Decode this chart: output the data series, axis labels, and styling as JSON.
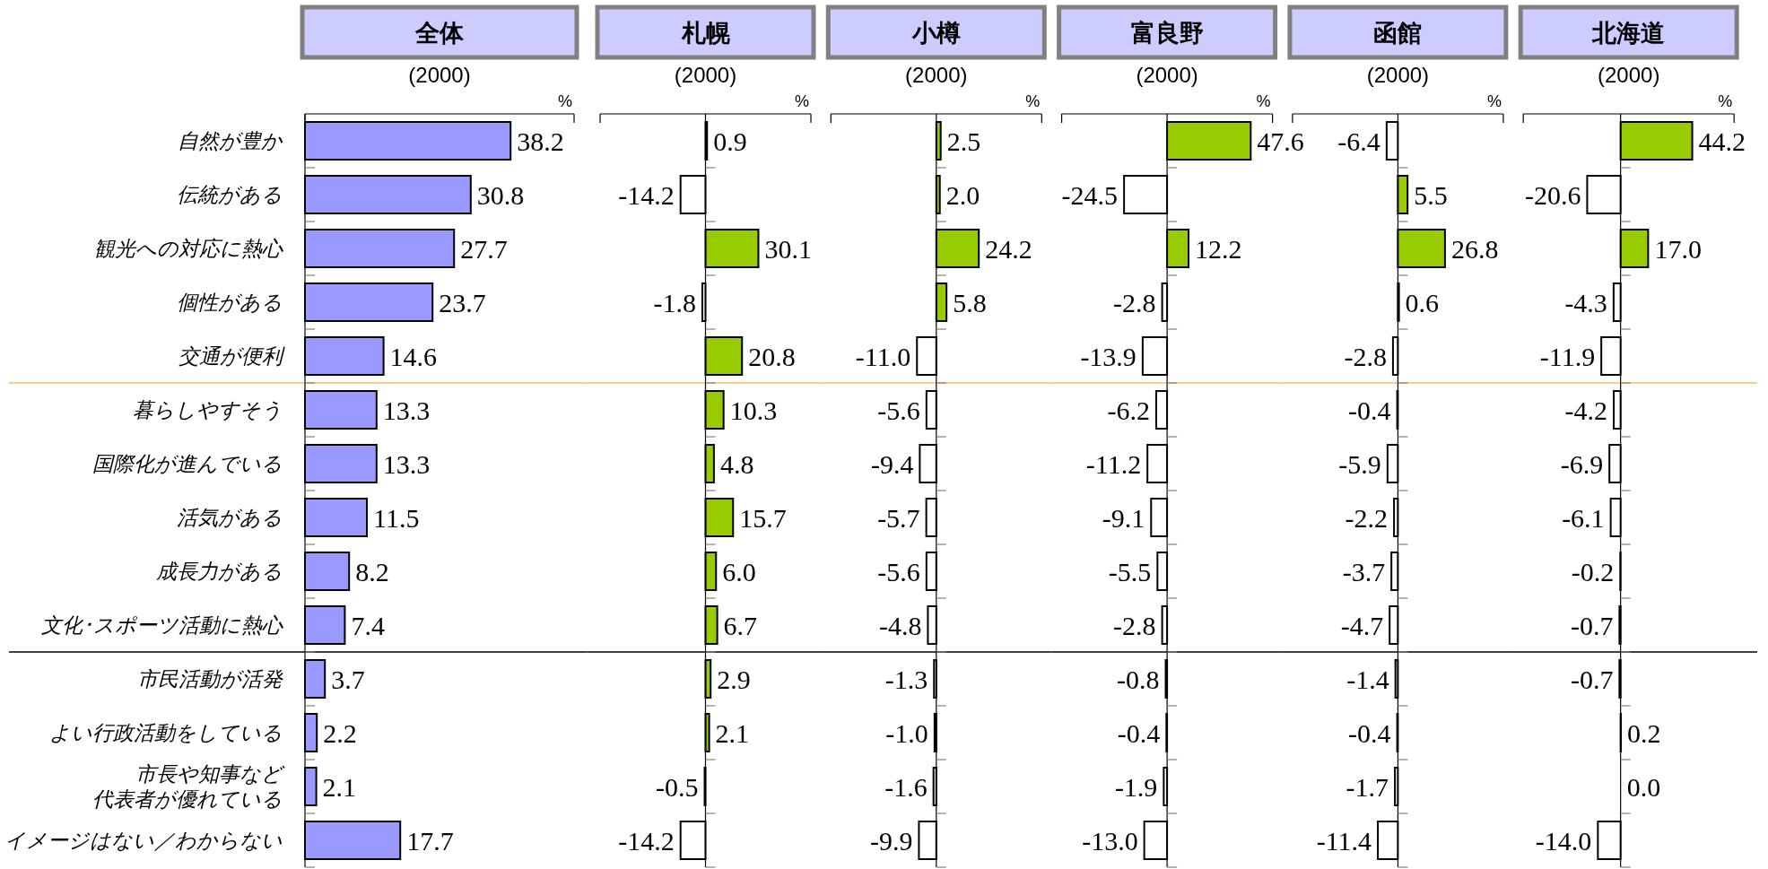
{
  "chart_data": [
    {
      "type": "bar",
      "orientation": "horizontal",
      "title": "全体",
      "subtitle": "(2000)",
      "xlabel": "%",
      "categories": [
        "自然が豊か",
        "伝統がある",
        "観光への対応に熱心",
        "個性がある",
        "交通が便利",
        "暮らしやすそう",
        "国際化が進んでいる",
        "活気がある",
        "成長力がある",
        "文化･スポーツ活動に熱心",
        "市民活動が活発",
        "よい行政活動をしている",
        "市長や知事など代表者が優れている",
        "イメージはない／わからない"
      ],
      "values": [
        38.2,
        30.8,
        27.7,
        23.7,
        14.6,
        13.3,
        13.3,
        11.5,
        8.2,
        7.4,
        3.7,
        2.2,
        2.1,
        17.7
      ],
      "value_labels": [
        "38.2",
        "30.8",
        "27.7",
        "23.7",
        "14.6",
        "13.3",
        "13.3",
        "11.5",
        "8.2",
        "7.4",
        "3.7",
        "2.2",
        "2.1",
        "17.7"
      ],
      "color": "#9999ff",
      "xlim": [
        0,
        50
      ],
      "xticks": [
        {
          "value": 0,
          "label": null
        },
        {
          "value": 50,
          "label": null
        }
      ],
      "tick_labels": "y",
      "ref_lines": [
        {
          "axis": "y",
          "value": "暮らしやすそう",
          "color": "#fbbd5f"
        },
        {
          "axis": "y",
          "value": "市民活動が活発",
          "color": "#000000"
        }
      ]
    },
    {
      "type": "bar",
      "orientation": "horizontal",
      "title": "札幌",
      "subtitle": "(2000)",
      "xlabel": "%",
      "categories": [
        "自然が豊か",
        "伝統がある",
        "観光への対応に熱心",
        "個性がある",
        "交通が便利",
        "暮らしやすそう",
        "国際化が進んでいる",
        "活気がある",
        "成長力がある",
        "文化･スポーツ活動に熱心",
        "市民活動が活発",
        "よい行政活動をしている",
        "市長や知事など代表者が優れている",
        "イメージはない／わからない"
      ],
      "values": [
        0.9,
        -14.2,
        30.1,
        -1.8,
        20.8,
        10.3,
        4.8,
        15.7,
        6.0,
        6.7,
        2.9,
        2.1,
        -0.5,
        -14.2
      ],
      "value_labels": [
        "0.9",
        "-14.2",
        "30.1",
        "-1.8",
        "20.8",
        "10.3",
        "4.8",
        "15.7",
        "6.0",
        "6.7",
        "2.9",
        "2.1",
        "-0.5",
        "-14.2"
      ],
      "colors": [
        "#99cc00",
        "#ffffff",
        "#99cc00",
        "#ffffff",
        "#99cc00",
        "#99cc00",
        "#99cc00",
        "#99cc00",
        "#99cc00",
        "#99cc00",
        "#99cc00",
        "#99cc00",
        "#ffffff",
        "#ffffff"
      ],
      "xlim": [
        -60,
        60
      ],
      "xticks": [
        {
          "value": -60,
          "label": null
        },
        {
          "value": 60,
          "label": null
        }
      ],
      "tick_labels": false,
      "ref_lines": [
        {
          "axis": "y",
          "value": "暮らしやすそう",
          "color": "#fbbd5f"
        },
        {
          "axis": "y",
          "value": "市民活動が活発",
          "color": "#000000"
        }
      ]
    },
    {
      "type": "bar",
      "orientation": "horizontal",
      "title": "小樽",
      "subtitle": "(2000)",
      "xlabel": "%",
      "categories": [
        "自然が豊か",
        "伝統がある",
        "観光への対応に熱心",
        "個性がある",
        "交通が便利",
        "暮らしやすそう",
        "国際化が進んでいる",
        "活気がある",
        "成長力がある",
        "文化･スポーツ活動に熱心",
        "市民活動が活発",
        "よい行政活動をしている",
        "市長や知事など代表者が優れている",
        "イメージはない／わからない"
      ],
      "values": [
        2.5,
        2.0,
        24.2,
        5.8,
        -11.0,
        -5.6,
        -9.4,
        -5.7,
        -5.6,
        -4.8,
        -1.3,
        -1.0,
        -1.6,
        -9.9
      ],
      "value_labels": [
        "2.5",
        "2.0",
        "24.2",
        "5.8",
        "-11.0",
        "-5.6",
        "-9.4",
        "-5.7",
        "-5.6",
        "-4.8",
        "-1.3",
        "-1.0",
        "-1.6",
        "-9.9"
      ],
      "colors": [
        "#99cc00",
        "#99cc00",
        "#99cc00",
        "#99cc00",
        "#ffffff",
        "#ffffff",
        "#ffffff",
        "#ffffff",
        "#ffffff",
        "#ffffff",
        "#ffffff",
        "#ffffff",
        "#ffffff",
        "#ffffff"
      ],
      "xlim": [
        -60,
        60
      ],
      "xticks": [
        {
          "value": -60,
          "label": null
        },
        {
          "value": 60,
          "label": null
        }
      ],
      "tick_labels": false,
      "ref_lines": [
        {
          "axis": "y",
          "value": "暮らしやすそう",
          "color": "#fbbd5f"
        },
        {
          "axis": "y",
          "value": "市民活動が活発",
          "color": "#000000"
        }
      ]
    },
    {
      "type": "bar",
      "orientation": "horizontal",
      "title": "富良野",
      "subtitle": "(2000)",
      "xlabel": "%",
      "categories": [
        "自然が豊か",
        "伝統がある",
        "観光への対応に熱心",
        "個性がある",
        "交通が便利",
        "暮らしやすそう",
        "国際化が進んでいる",
        "活気がある",
        "成長力がある",
        "文化･スポーツ活動に熱心",
        "市民活動が活発",
        "よい行政活動をしている",
        "市長や知事など代表者が優れている",
        "イメージはない／わからない"
      ],
      "values": [
        47.6,
        -24.5,
        12.2,
        -2.8,
        -13.9,
        -6.2,
        -11.2,
        -9.1,
        -5.5,
        -2.8,
        -0.8,
        -0.4,
        -1.9,
        -13.0
      ],
      "value_labels": [
        "47.6",
        "-24.5",
        "12.2",
        "-2.8",
        "-13.9",
        "-6.2",
        "-11.2",
        "-9.1",
        "-5.5",
        "-2.8",
        "-0.8",
        "-0.4",
        "-1.9",
        "-13.0"
      ],
      "colors": [
        "#99cc00",
        "#ffffff",
        "#99cc00",
        "#ffffff",
        "#ffffff",
        "#ffffff",
        "#ffffff",
        "#ffffff",
        "#ffffff",
        "#ffffff",
        "#ffffff",
        "#ffffff",
        "#ffffff",
        "#ffffff"
      ],
      "xlim": [
        -60,
        60
      ],
      "xticks": [
        {
          "value": -60,
          "label": null
        },
        {
          "value": 60,
          "label": null
        }
      ],
      "tick_labels": false,
      "ref_lines": [
        {
          "axis": "y",
          "value": "暮らしやすそう",
          "color": "#fbbd5f"
        },
        {
          "axis": "y",
          "value": "市民活動が活発",
          "color": "#000000"
        }
      ]
    },
    {
      "type": "bar",
      "orientation": "horizontal",
      "title": "函館",
      "subtitle": "(2000)",
      "xlabel": "%",
      "categories": [
        "自然が豊か",
        "伝統がある",
        "観光への対応に熱心",
        "個性がある",
        "交通が便利",
        "暮らしやすそう",
        "国際化が進んでいる",
        "活気がある",
        "成長力がある",
        "文化･スポーツ活動に熱心",
        "市民活動が活発",
        "よい行政活動をしている",
        "市長や知事など代表者が優れている",
        "イメージはない／わからない"
      ],
      "values": [
        -6.4,
        5.5,
        26.8,
        0.6,
        -2.8,
        -0.4,
        -5.9,
        -2.2,
        -3.7,
        -4.7,
        -1.4,
        -0.4,
        -1.7,
        -11.4
      ],
      "value_labels": [
        "-6.4",
        "5.5",
        "26.8",
        "0.6",
        "-2.8",
        "-0.4",
        "-5.9",
        "-2.2",
        "-3.7",
        "-4.7",
        "-1.4",
        "-0.4",
        "-1.7",
        "-11.4"
      ],
      "colors": [
        "#ffffff",
        "#99cc00",
        "#99cc00",
        "#99cc00",
        "#ffffff",
        "#ffffff",
        "#ffffff",
        "#ffffff",
        "#ffffff",
        "#ffffff",
        "#ffffff",
        "#ffffff",
        "#ffffff",
        "#ffffff"
      ],
      "xlim": [
        -60,
        60
      ],
      "xticks": [
        {
          "value": -60,
          "label": null
        },
        {
          "value": 60,
          "label": null
        }
      ],
      "tick_labels": false,
      "ref_lines": [
        {
          "axis": "y",
          "value": "暮らしやすそう",
          "color": "#fbbd5f"
        },
        {
          "axis": "y",
          "value": "市民活動が活発",
          "color": "#000000"
        }
      ]
    },
    {
      "type": "bar",
      "orientation": "horizontal",
      "title": "北海道",
      "subtitle": "(2000)",
      "xlabel": "%",
      "categories": [
        "自然が豊か",
        "伝統がある",
        "観光への対応に熱心",
        "個性がある",
        "交通が便利",
        "暮らしやすそう",
        "国際化が進んでいる",
        "活気がある",
        "成長力がある",
        "文化･スポーツ活動に熱心",
        "市民活動が活発",
        "よい行政活動をしている",
        "市長や知事など代表者が優れている",
        "イメージはない／わからない"
      ],
      "values": [
        44.2,
        -20.6,
        17.0,
        -4.3,
        -11.9,
        -4.2,
        -6.9,
        -6.1,
        -0.2,
        -0.7,
        -0.7,
        0.2,
        0.0,
        -14.0
      ],
      "value_labels": [
        "44.2",
        "-20.6",
        "17.0",
        "-4.3",
        "-11.9",
        "-4.2",
        "-6.9",
        "-6.1",
        "-0.2",
        "-0.7",
        "-0.7",
        "0.2",
        "0.0",
        "-14.0"
      ],
      "colors": [
        "#99cc00",
        "#ffffff",
        "#99cc00",
        "#ffffff",
        "#ffffff",
        "#ffffff",
        "#ffffff",
        "#ffffff",
        "#ffffff",
        "#ffffff",
        "#ffffff",
        "#99cc00",
        "#99cc00",
        "#ffffff"
      ],
      "xlim": [
        -60,
        70
      ],
      "xticks": [
        {
          "value": -60,
          "label": null
        },
        {
          "value": 70,
          "label": null
        }
      ],
      "tick_labels": false,
      "ref_lines": [
        {
          "axis": "y",
          "value": "暮らしやすそう",
          "color": "#fbbd5f"
        },
        {
          "axis": "y",
          "value": "市民活動が活発",
          "color": "#000000"
        }
      ]
    }
  ]
}
